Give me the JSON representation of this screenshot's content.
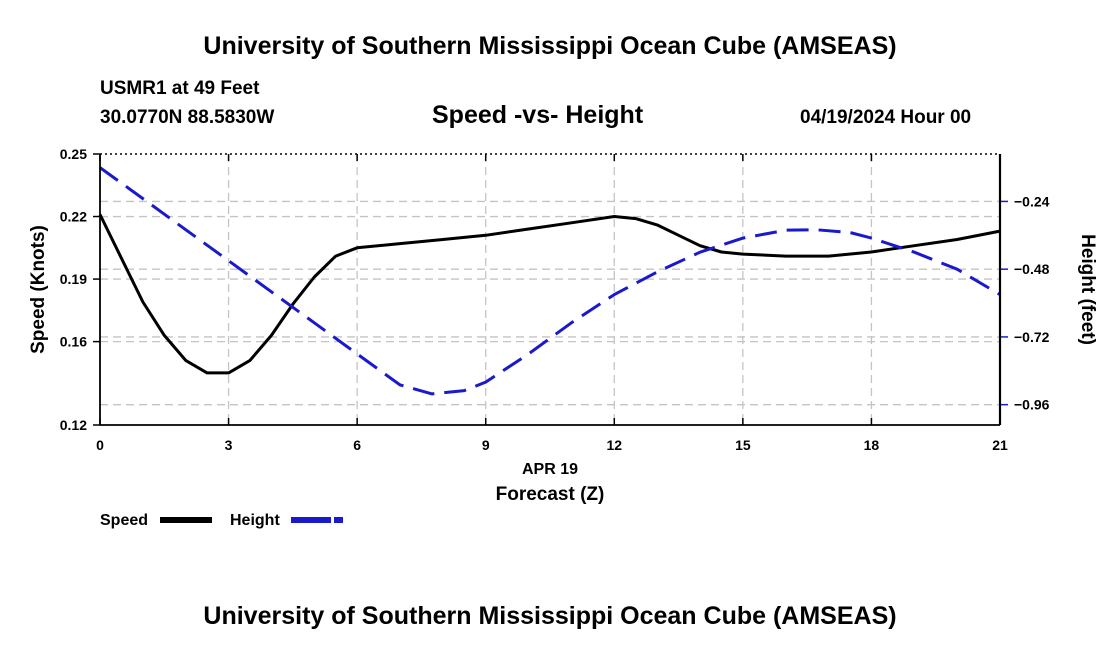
{
  "header": {
    "title": "University of Southern Mississippi Ocean Cube (AMSEAS)",
    "station": "USMR1 at 49 Feet",
    "coords": "30.0770N  88.5830W",
    "subtitle": "Speed -vs- Height",
    "datetime": "04/19/2024 Hour 00"
  },
  "footer": {
    "title": "University of Southern Mississippi Ocean Cube (AMSEAS)"
  },
  "chart_data": {
    "type": "line",
    "title": "Speed -vs- Height",
    "xlabel": "Forecast (Z)",
    "xlabel_date": "APR 19",
    "ylabel_left": "Speed (Knots)",
    "ylabel_right": "Height (feet)",
    "xlim": [
      0,
      21
    ],
    "ylim_left": [
      0.12,
      0.25
    ],
    "ylim_right": [
      -1.032,
      -0.072
    ],
    "x_ticks": [
      0,
      3,
      6,
      9,
      12,
      15,
      18,
      21
    ],
    "x_tick_labels": [
      "0",
      "3",
      "6",
      "9",
      "12",
      "15",
      "18",
      "21"
    ],
    "y_left_ticks": [
      0.12,
      0.16,
      0.19,
      0.22,
      0.25
    ],
    "y_left_tick_labels": [
      "0.12",
      "0.16",
      "0.19",
      "0.22",
      "0.25"
    ],
    "y_right_ticks": [
      -0.96,
      -0.72,
      -0.48,
      -0.24
    ],
    "y_right_tick_labels": [
      "−0.96",
      "−0.72",
      "−0.48",
      "−0.24"
    ],
    "grid": true,
    "legend": {
      "position": "bottom-left",
      "items": [
        {
          "label": "Speed",
          "color": "#000000",
          "dash": "solid"
        },
        {
          "label": "Height",
          "color": "#1a1acc",
          "dash": "dashed"
        }
      ]
    },
    "series": [
      {
        "name": "Speed",
        "axis": "left",
        "color": "#000000",
        "style": "solid",
        "x": [
          0,
          0.5,
          1,
          1.5,
          2,
          2.5,
          3,
          3.5,
          4,
          4.5,
          5,
          5.5,
          6,
          7,
          8,
          9,
          10,
          11,
          12,
          12.5,
          13,
          13.5,
          14,
          14.5,
          15,
          16,
          17,
          18,
          19,
          20,
          21
        ],
        "values": [
          0.221,
          0.2,
          0.179,
          0.163,
          0.151,
          0.145,
          0.145,
          0.151,
          0.163,
          0.178,
          0.191,
          0.201,
          0.205,
          0.207,
          0.209,
          0.211,
          0.214,
          0.217,
          0.22,
          0.219,
          0.216,
          0.211,
          0.206,
          0.203,
          0.202,
          0.201,
          0.201,
          0.203,
          0.206,
          0.209,
          0.213
        ]
      },
      {
        "name": "Height",
        "axis": "right",
        "color": "#1a1acc",
        "style": "dashed",
        "x": [
          0,
          1,
          2,
          3,
          4,
          5,
          6,
          7,
          7.75,
          8.5,
          9,
          10,
          11,
          12,
          13,
          14,
          15,
          16,
          16.7,
          17.5,
          18,
          19,
          20,
          21
        ],
        "values": [
          -0.12,
          -0.23,
          -0.34,
          -0.45,
          -0.56,
          -0.67,
          -0.78,
          -0.89,
          -0.922,
          -0.91,
          -0.88,
          -0.78,
          -0.67,
          -0.57,
          -0.49,
          -0.42,
          -0.37,
          -0.342,
          -0.34,
          -0.35,
          -0.37,
          -0.42,
          -0.48,
          -0.57
        ]
      }
    ]
  }
}
